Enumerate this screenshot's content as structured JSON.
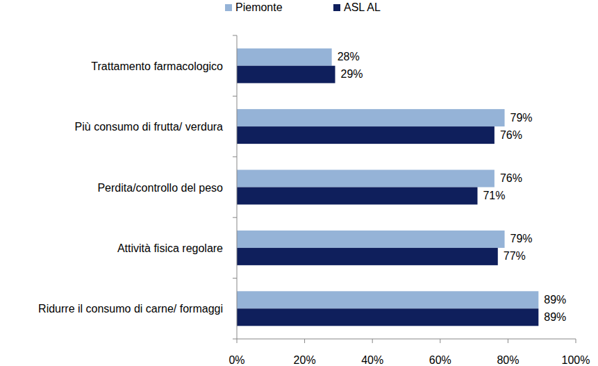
{
  "chart_data": {
    "type": "bar",
    "orientation": "horizontal",
    "categories": [
      "Trattamento farmacologico",
      "Più consumo di frutta/ verdura",
      "Perdita/controllo del peso",
      "Attività fisica regolare",
      "Ridurre il consumo di carne/ formaggi"
    ],
    "series": [
      {
        "name": "Piemonte",
        "color": "#95b3d7",
        "values": [
          28,
          79,
          76,
          79,
          89
        ],
        "value_labels": [
          "28%",
          "79%",
          "76%",
          "79%",
          "89%"
        ]
      },
      {
        "name": "ASL AL",
        "color": "#0f1f5c",
        "values": [
          29,
          76,
          71,
          77,
          89
        ],
        "value_labels": [
          "29%",
          "76%",
          "71%",
          "77%",
          "89%"
        ]
      }
    ],
    "xlim": [
      0,
      100
    ],
    "xticks": [
      {
        "value": 0,
        "label": "0%"
      },
      {
        "value": 20,
        "label": "20%"
      },
      {
        "value": 40,
        "label": "40%"
      },
      {
        "value": 60,
        "label": "60%"
      },
      {
        "value": 80,
        "label": "80%"
      },
      {
        "value": 100,
        "label": "100%"
      }
    ],
    "grid": false,
    "legend": "top",
    "data_labels": true
  }
}
